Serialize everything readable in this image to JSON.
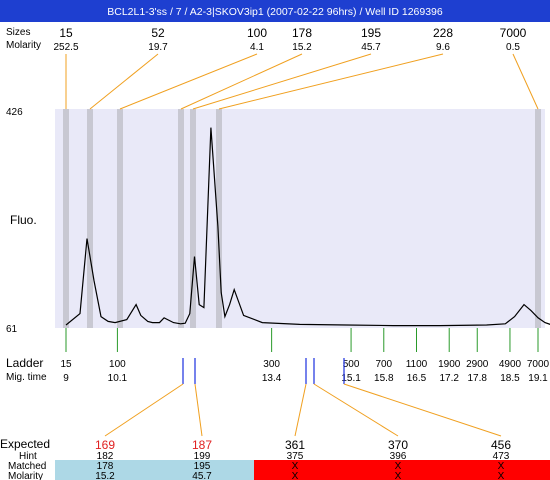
{
  "header": {
    "title": "BCL2L1-3'ss / 7 / A2-3|SKOV3ip1 (2007-02-22 96hrs) / Well ID 1269396",
    "bg_color": "#1e3fd0"
  },
  "labels": {
    "sizes": "Sizes",
    "molarity": "Molarity",
    "fluo": "Fluo.",
    "ladder": "Ladder",
    "mig_time": "Mig. time",
    "expected": "Expected",
    "hint": "Hint",
    "matched": "Matched",
    "molarity_row": "Molarity",
    "y_max": "426",
    "y_min": "61"
  },
  "peaks": [
    {
      "size": "15",
      "molarity": "252.5"
    },
    {
      "size": "52",
      "molarity": "19.7"
    },
    {
      "size": "100",
      "molarity": "4.1"
    },
    {
      "size": "178",
      "molarity": "15.2"
    },
    {
      "size": "195",
      "molarity": "45.7"
    },
    {
      "size": "228",
      "molarity": "9.6"
    },
    {
      "size": "7000",
      "molarity": "0.5"
    }
  ],
  "ladder": [
    {
      "size": "15",
      "time": "9"
    },
    {
      "size": "100",
      "time": "10.1"
    },
    {
      "size": "300",
      "time": "13.4"
    },
    {
      "size": "500",
      "time": "15.1"
    },
    {
      "size": "700",
      "time": "15.8"
    },
    {
      "size": "1100",
      "time": "16.5"
    },
    {
      "size": "1900",
      "time": "17.2"
    },
    {
      "size": "2900",
      "time": "17.8"
    },
    {
      "size": "4900",
      "time": "18.5"
    },
    {
      "size": "7000",
      "time": "19.1"
    }
  ],
  "expected": [
    {
      "value": "169",
      "hint": "182",
      "matched": "178",
      "molarity": "15.2",
      "status": "matched"
    },
    {
      "value": "187",
      "hint": "199",
      "matched": "195",
      "molarity": "45.7",
      "status": "matched"
    },
    {
      "value": "361",
      "hint": "375",
      "matched": "X",
      "molarity": "X",
      "status": "missing"
    },
    {
      "value": "370",
      "hint": "396",
      "matched": "X",
      "molarity": "X",
      "status": "missing"
    },
    {
      "value": "456",
      "hint": "473",
      "matched": "X",
      "molarity": "X",
      "status": "missing"
    }
  ],
  "colors": {
    "plot_bg": "#e9e9f8",
    "peak_band": "#c8c8d2",
    "connector": "#f0a020",
    "ladder_tick": "#2a9a2a",
    "expected_mark": "#1a2ee0",
    "matched_bg": "#add8e6",
    "missing_bg": "#ff0000",
    "expected_matched_text": "#e02020",
    "trace": "#000000"
  },
  "chart_data": {
    "type": "line",
    "title": "BCL2L1-3'ss / 7 / A2-3|SKOV3ip1 (2007-02-22 96hrs) / Well ID 1269396",
    "xlabel": "",
    "ylabel": "Fluo.",
    "ylim": [
      61,
      426
    ],
    "series": [
      {
        "x": [
          9.0,
          9.3,
          9.45,
          9.6,
          9.75,
          9.9,
          10.05,
          10.3,
          10.5,
          10.6,
          10.75,
          10.85,
          11.0,
          11.1,
          11.3,
          11.45,
          11.55,
          11.65,
          11.75,
          11.85,
          11.95,
          12.1,
          12.25,
          12.32,
          12.4,
          12.5,
          12.6,
          12.8,
          13.2,
          14.0,
          15.0,
          16.0,
          17.0,
          18.0,
          18.4,
          18.6,
          18.8,
          18.95,
          19.1,
          19.25,
          19.4
        ],
        "y": [
          66,
          85,
          210,
          140,
          80,
          72,
          70,
          75,
          100,
          82,
          72,
          70,
          70,
          78,
          70,
          68,
          69,
          85,
          180,
          100,
          95,
          395,
          230,
          120,
          80,
          100,
          125,
          82,
          70,
          67,
          66,
          65,
          65,
          66,
          68,
          80,
          100,
          90,
          78,
          70,
          66
        ]
      }
    ],
    "peaks": [
      {
        "size": 15,
        "molarity": 252.5
      },
      {
        "size": 52,
        "molarity": 19.7
      },
      {
        "size": 100,
        "molarity": 4.1
      },
      {
        "size": 178,
        "molarity": 15.2
      },
      {
        "size": 195,
        "molarity": 45.7
      },
      {
        "size": 228,
        "molarity": 9.6
      },
      {
        "size": 7000,
        "molarity": 0.5
      }
    ],
    "ladder": [
      {
        "size": 15,
        "mig_time": 9
      },
      {
        "size": 100,
        "mig_time": 10.1
      },
      {
        "size": 300,
        "mig_time": 13.4
      },
      {
        "size": 500,
        "mig_time": 15.1
      },
      {
        "size": 700,
        "mig_time": 15.8
      },
      {
        "size": 1100,
        "mig_time": 16.5
      },
      {
        "size": 1900,
        "mig_time": 17.2
      },
      {
        "size": 2900,
        "mig_time": 17.8
      },
      {
        "size": 4900,
        "mig_time": 18.5
      },
      {
        "size": 7000,
        "mig_time": 19.1
      }
    ],
    "expected": [
      {
        "expected": 169,
        "hint": 182,
        "matched": 178,
        "molarity": 15.2
      },
      {
        "expected": 187,
        "hint": 199,
        "matched": 195,
        "molarity": 45.7
      },
      {
        "expected": 361,
        "hint": 375,
        "matched": null,
        "molarity": null
      },
      {
        "expected": 370,
        "hint": 396,
        "matched": null,
        "molarity": null
      },
      {
        "expected": 456,
        "hint": 473,
        "matched": null,
        "molarity": null
      }
    ]
  }
}
